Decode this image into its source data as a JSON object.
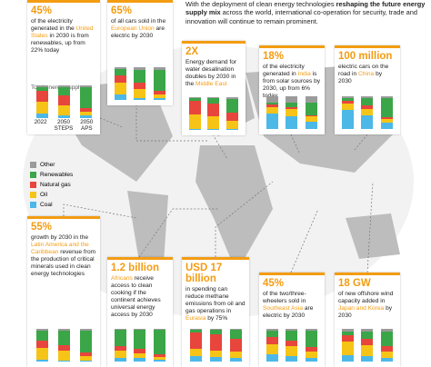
{
  "intro": [
    {
      "t": "With the deployment of clean energy technologies "
    },
    {
      "t": "reshaping the future energy supply mix",
      "b": true
    },
    {
      "t": " across the world, international co-operation for security, trade and innovation will continue to remain prominent."
    }
  ],
  "legend": [
    {
      "name": "Other",
      "color": "#9b9b9b"
    },
    {
      "name": "Renewables",
      "color": "#3aa648"
    },
    {
      "name": "Natural gas",
      "color": "#e8453c"
    },
    {
      "name": "Oil",
      "color": "#f6c416"
    },
    {
      "name": "Coal",
      "color": "#4cb8e8"
    }
  ],
  "cards": [
    {
      "headline": "45%",
      "text": [
        {
          "t": "of the electricity generated in the "
        },
        {
          "t": "United States",
          "hl": true
        },
        {
          "t": " in 2030 is from renewables, up from 22% today"
        }
      ],
      "sublabel": "Total energy supply",
      "xlabels": [
        "2022",
        "2050 STEPS",
        "2050 APS"
      ],
      "bars": [
        [
          5,
          12,
          33,
          36,
          14
        ],
        [
          6,
          25,
          30,
          30,
          9
        ],
        [
          6,
          62,
          12,
          12,
          8
        ]
      ]
    },
    {
      "headline": "65%",
      "text": [
        {
          "t": "of all cars sold in the "
        },
        {
          "t": "European Union",
          "hl": true
        },
        {
          "t": " are electric by 2030"
        }
      ],
      "bars": [
        [
          6,
          18,
          24,
          34,
          18
        ],
        [
          8,
          40,
          18,
          28,
          6
        ],
        [
          8,
          64,
          10,
          12,
          6
        ]
      ]
    },
    {
      "headline": "2X",
      "text": [
        {
          "t": "Energy demand for water desalination doubles by 2030 in the "
        },
        {
          "t": "Middle East",
          "hl": true
        }
      ],
      "bars": [
        [
          4,
          6,
          42,
          46,
          2
        ],
        [
          4,
          14,
          40,
          40,
          2
        ],
        [
          6,
          40,
          26,
          26,
          2
        ]
      ]
    },
    {
      "headline": "18%",
      "text": [
        {
          "t": "of the electricity generated in "
        },
        {
          "t": "India",
          "hl": true
        },
        {
          "t": " is from solar sources by 2030, up from 6% today"
        }
      ],
      "bars": [
        [
          20,
          6,
          8,
          20,
          46
        ],
        [
          18,
          16,
          6,
          22,
          38
        ],
        [
          18,
          40,
          4,
          16,
          22
        ]
      ]
    },
    {
      "headline": "100 million",
      "text": [
        {
          "t": "electric cars on the road in "
        },
        {
          "t": "China",
          "hl": true
        },
        {
          "t": " by 2030"
        }
      ],
      "bars": [
        [
          6,
          8,
          8,
          20,
          58
        ],
        [
          6,
          22,
          10,
          20,
          42
        ],
        [
          6,
          58,
          6,
          10,
          20
        ]
      ]
    },
    {
      "headline": "55%",
      "text": [
        {
          "t": "growth by 2030 in the "
        },
        {
          "t": "Latin America and the Caribbean",
          "hl": true
        },
        {
          "t": " revenue from the production of critical minerals used in clean energy technologies"
        }
      ],
      "bars": [
        [
          6,
          30,
          22,
          36,
          6
        ],
        [
          6,
          44,
          18,
          28,
          4
        ],
        [
          6,
          66,
          10,
          14,
          4
        ]
      ]
    },
    {
      "headline": "1.2 billion",
      "text": [
        {
          "t": "Africans",
          "hl": true
        },
        {
          "t": " receive access to clean cooking if the continent achieves universal energy access by 2030"
        }
      ],
      "bars": [
        [
          4,
          50,
          12,
          22,
          12
        ],
        [
          4,
          58,
          12,
          16,
          10
        ],
        [
          4,
          74,
          8,
          8,
          6
        ]
      ]
    },
    {
      "headline": "USD 17 billion",
      "text": [
        {
          "t": "in spending can reduce methane emissions from oil and gas operations in "
        },
        {
          "t": "Eurasia",
          "hl": true
        },
        {
          "t": " by 75%"
        }
      ],
      "bars": [
        [
          4,
          6,
          52,
          22,
          16
        ],
        [
          4,
          12,
          50,
          20,
          14
        ],
        [
          4,
          26,
          40,
          18,
          12
        ]
      ]
    },
    {
      "headline": "45%",
      "text": [
        {
          "t": "of the two/three-wheelers sold in "
        },
        {
          "t": "Southeast Asia",
          "hl": true
        },
        {
          "t": " are electric by 2030"
        }
      ],
      "bars": [
        [
          6,
          20,
          20,
          32,
          22
        ],
        [
          6,
          30,
          18,
          28,
          18
        ],
        [
          6,
          50,
          14,
          18,
          12
        ]
      ]
    },
    {
      "headline": "18 GW",
      "text": [
        {
          "t": "of new offshore wind capacity added in "
        },
        {
          "t": "Japan and Korea",
          "hl": true
        },
        {
          "t": " by 2030"
        }
      ],
      "bars": [
        [
          8,
          10,
          22,
          40,
          20
        ],
        [
          8,
          22,
          20,
          34,
          16
        ],
        [
          8,
          46,
          14,
          20,
          12
        ]
      ]
    }
  ]
}
